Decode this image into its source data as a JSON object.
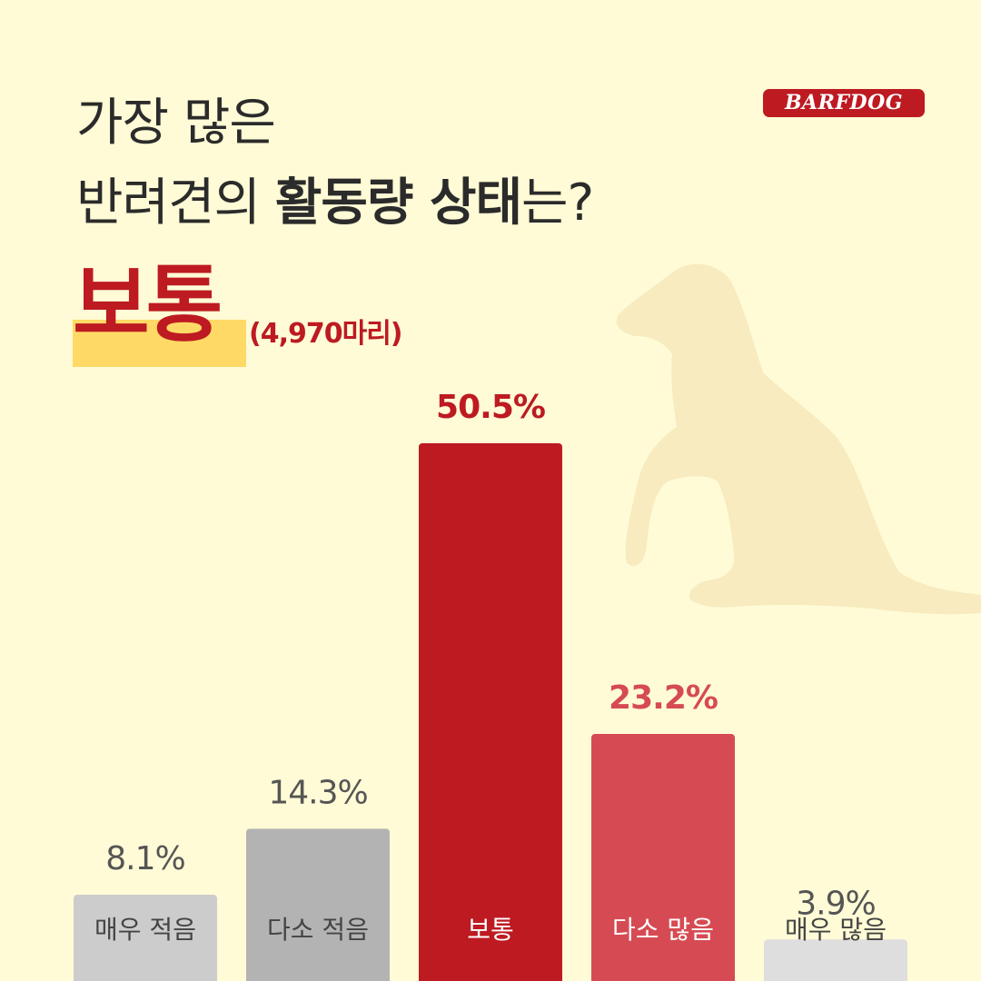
{
  "brand": {
    "name": "BARFDOG"
  },
  "title": {
    "line1": "가장 많은",
    "line2_prefix": "반려견의 ",
    "line2_bold": "활동량 상태",
    "line2_suffix": "는?"
  },
  "answer": {
    "label": "보통",
    "count": "(4,970마리)"
  },
  "colors": {
    "background": "#fffbd6",
    "accent_red": "#bd1a22",
    "light_red": "#d64b53",
    "highlight_yellow": "#ffd966",
    "gray_light": "#cccccc",
    "gray_mid": "#b3b3b3",
    "gray_pale": "#dedede"
  },
  "chart_data": {
    "type": "bar",
    "categories": [
      "매우 적음",
      "다소 적음",
      "보통",
      "다소 많음",
      "매우 많음"
    ],
    "values": [
      8.1,
      14.3,
      50.5,
      23.2,
      3.9
    ],
    "value_labels": [
      "8.1%",
      "14.3%",
      "50.5%",
      "23.2%",
      "3.9%"
    ],
    "bar_colors": [
      "#cccccc",
      "#b3b3b3",
      "#bd1a22",
      "#d64b53",
      "#dedede"
    ],
    "label_colors": [
      "#555555",
      "#555555",
      "#bd1a22",
      "#d64b53",
      "#555555"
    ],
    "category_text_colors": [
      "#444444",
      "#444444",
      "#ffffff",
      "#ffffff",
      "#444444"
    ],
    "value_bold": [
      false,
      false,
      true,
      true,
      false
    ],
    "ylim": [
      0,
      60
    ],
    "grid": false,
    "legend": "none"
  }
}
